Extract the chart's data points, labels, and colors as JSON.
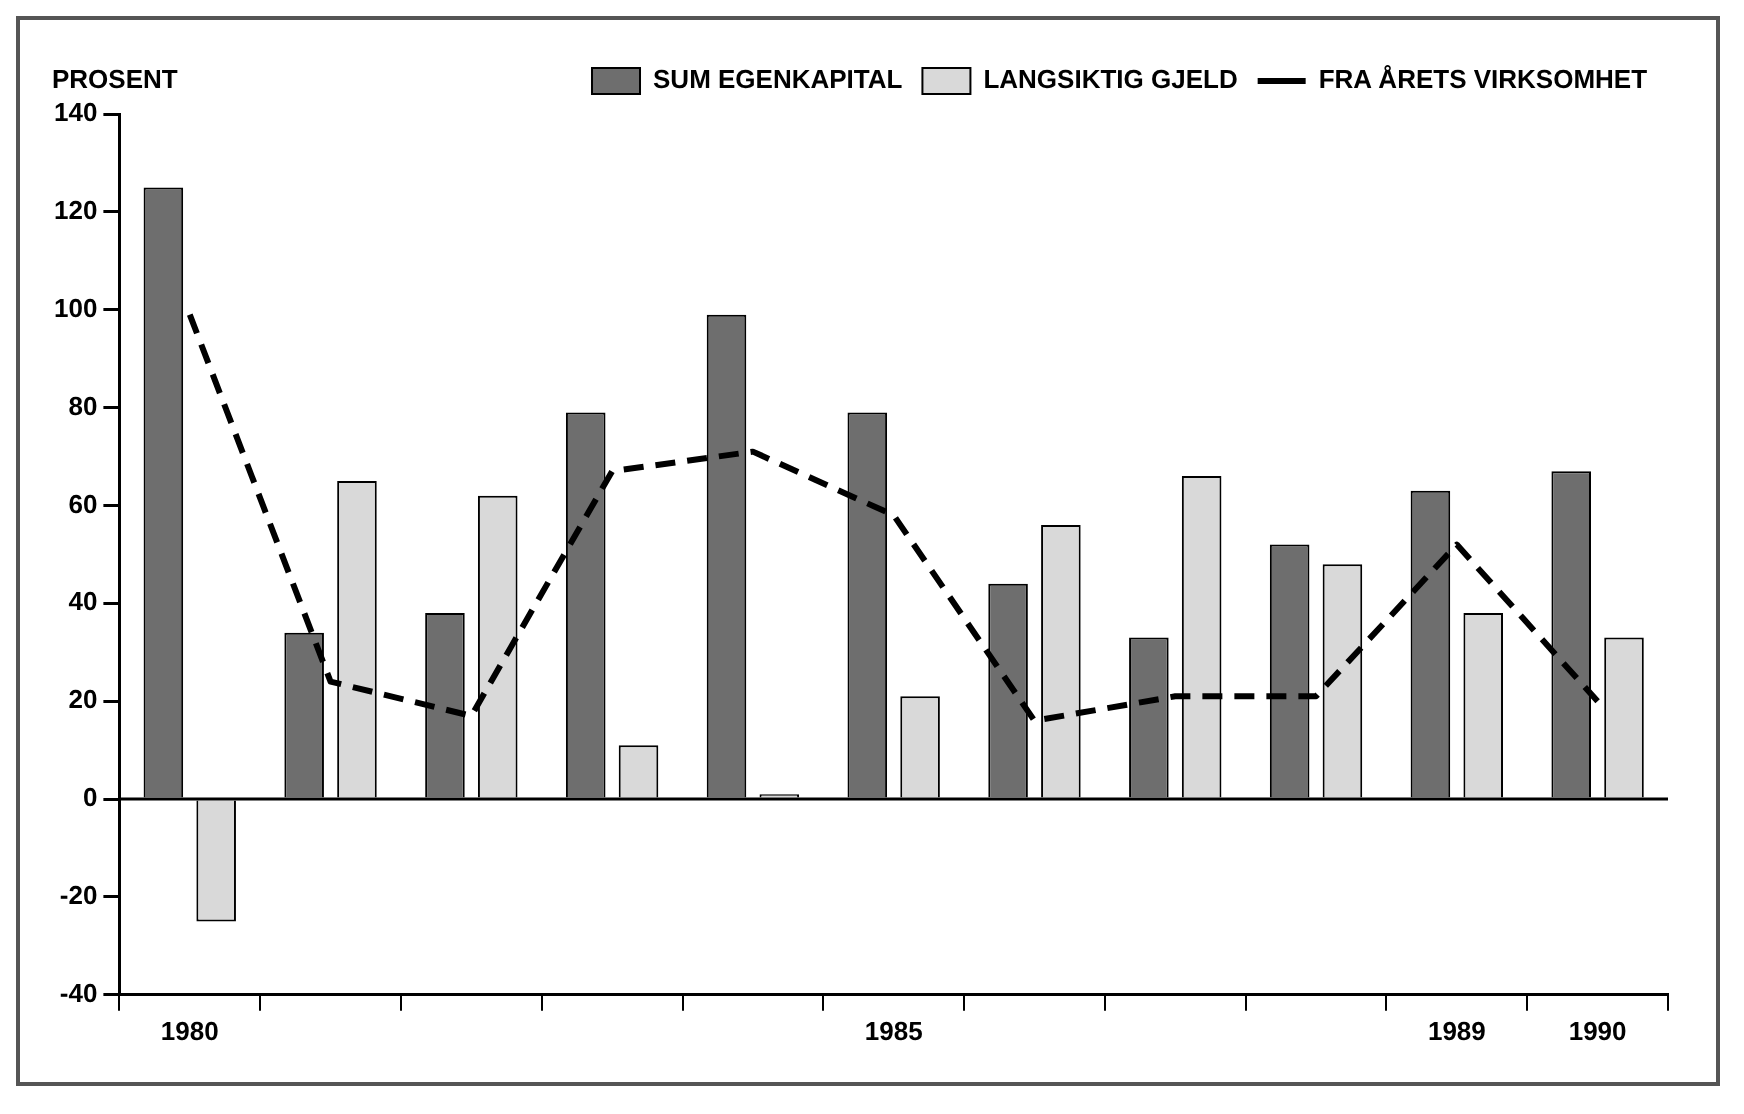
{
  "chart_data": {
    "type": "bar",
    "ylabel": "PROSENT",
    "categories": [
      "1980",
      null,
      null,
      null,
      null,
      "1985",
      null,
      null,
      null,
      "1989",
      "1990"
    ],
    "series": [
      {
        "name": "SUM EGENKAPITAL",
        "color": "#6e6e6e",
        "values": [
          125,
          34,
          38,
          79,
          99,
          79,
          44,
          33,
          52,
          63,
          67
        ]
      },
      {
        "name": "LANGSIKTIG GJELD",
        "color": "#d9d9d9",
        "values": [
          -25,
          65,
          62,
          11,
          1,
          21,
          56,
          66,
          48,
          38,
          33
        ]
      },
      {
        "name": "FRA ÅRETS VIRKSOMHET",
        "type": "line",
        "color": "#000000",
        "line_style": "dashed",
        "marker": "none",
        "values": [
          99,
          24,
          17,
          67,
          71,
          58,
          16,
          21,
          21,
          52,
          20
        ]
      }
    ],
    "ylim": [
      -40,
      140
    ],
    "yticks": [
      -40,
      -20,
      0,
      20,
      40,
      60,
      80,
      100,
      120,
      140
    ],
    "grid": false,
    "ref_lines": [
      {
        "axis": "y",
        "value": 0,
        "color": "#000000",
        "line_style": "solid"
      }
    ],
    "legend": "top right"
  }
}
